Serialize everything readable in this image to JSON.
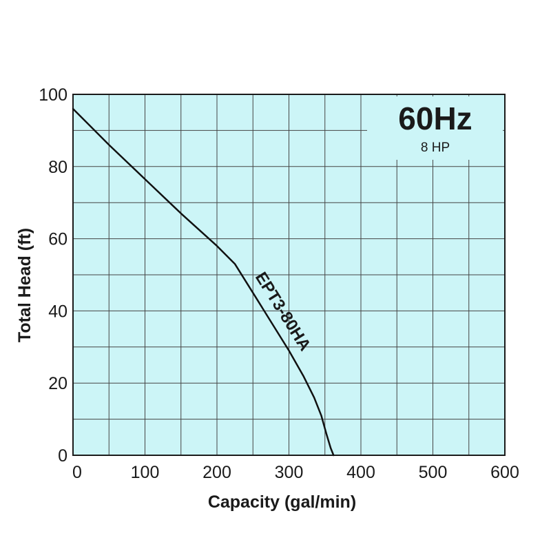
{
  "chart_data": {
    "type": "line",
    "title": "60Hz",
    "subtitle": "8 HP",
    "xlabel": "Capacity (gal/min)",
    "ylabel": "Total Head (ft)",
    "xlim": [
      0,
      600
    ],
    "ylim": [
      0,
      100
    ],
    "x_ticks": [
      "0",
      "100",
      "200",
      "300",
      "400",
      "500",
      "600"
    ],
    "y_ticks": [
      "0",
      "20",
      "40",
      "60",
      "80",
      "100"
    ],
    "grid": true,
    "series": [
      {
        "name": "EPT3-80HA",
        "x": [
          0,
          50,
          100,
          150,
          200,
          225,
          250,
          275,
          300,
          320,
          335,
          345,
          352,
          358,
          362
        ],
        "y": [
          96,
          86,
          76.5,
          67,
          58,
          53,
          45,
          37,
          29,
          22,
          16,
          11,
          6,
          2,
          0
        ]
      }
    ],
    "colors": {
      "plot_background": "#ccf5f7",
      "grid": "#444444",
      "curve": "#111111"
    }
  }
}
